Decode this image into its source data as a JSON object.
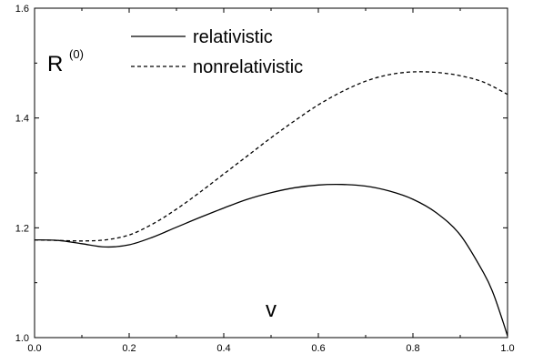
{
  "chart_data": {
    "type": "line",
    "title": "",
    "xlabel": "v",
    "ylabel_main": "R",
    "ylabel_superscript": "(0)",
    "xlim": [
      0.0,
      1.0
    ],
    "ylim": [
      1.0,
      1.6
    ],
    "xticks": [
      "0.0",
      "0.2",
      "0.4",
      "0.6",
      "0.8",
      "1.0"
    ],
    "yticks": [
      "1.0",
      "1.2",
      "1.4",
      "1.6"
    ],
    "grid": false,
    "legend_position": "top-left",
    "series": [
      {
        "name": "relativistic",
        "style": "solid",
        "x": [
          0.0,
          0.05,
          0.1,
          0.15,
          0.2,
          0.25,
          0.3,
          0.35,
          0.4,
          0.45,
          0.5,
          0.55,
          0.6,
          0.65,
          0.7,
          0.75,
          0.8,
          0.85,
          0.9,
          0.95,
          0.97,
          0.99,
          1.0
        ],
        "y": [
          1.178,
          1.177,
          1.171,
          1.165,
          1.169,
          1.183,
          1.201,
          1.219,
          1.236,
          1.252,
          1.264,
          1.273,
          1.278,
          1.279,
          1.276,
          1.267,
          1.252,
          1.227,
          1.187,
          1.117,
          1.08,
          1.03,
          1.003
        ]
      },
      {
        "name": "nonrelativistic",
        "style": "dashed",
        "x": [
          0.0,
          0.05,
          0.1,
          0.15,
          0.2,
          0.25,
          0.3,
          0.35,
          0.4,
          0.45,
          0.5,
          0.55,
          0.6,
          0.65,
          0.7,
          0.75,
          0.8,
          0.85,
          0.9,
          0.95,
          1.0
        ],
        "y": [
          1.178,
          1.177,
          1.176,
          1.178,
          1.187,
          1.207,
          1.234,
          1.265,
          1.298,
          1.331,
          1.364,
          1.395,
          1.424,
          1.448,
          1.467,
          1.479,
          1.484,
          1.483,
          1.477,
          1.465,
          1.443
        ]
      }
    ]
  }
}
